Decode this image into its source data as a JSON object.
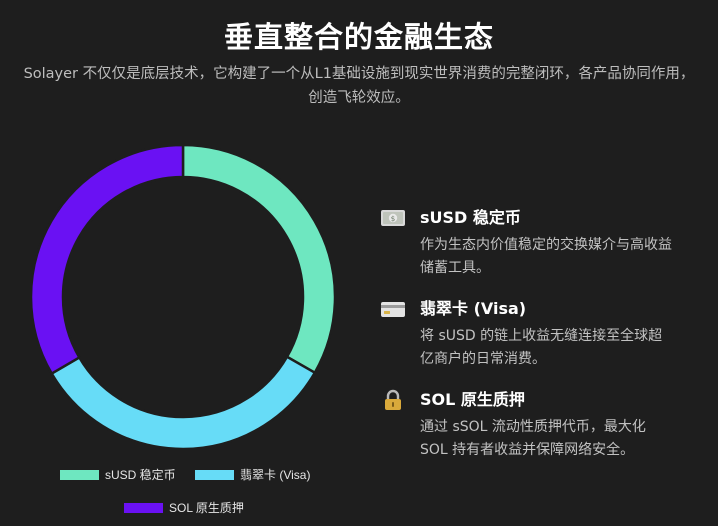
{
  "header": {
    "title": "垂直整合的金融生态",
    "subtitle": "Solayer 不仅仅是底层技术，它构建了一个从L1基础设施到现实世界消费的完整闭环，各产品协同作用，创造飞轮效应。"
  },
  "chart_data": {
    "type": "pie",
    "donut": true,
    "categories": [
      "sUSD 稳定币",
      "翡翠卡 (Visa)",
      "SOL 原生质押"
    ],
    "values": [
      33.3,
      33.3,
      33.4
    ],
    "colors": [
      "#6ee7c0",
      "#67dcf7",
      "#6a11f3"
    ],
    "legend_position": "bottom",
    "title": "",
    "xlabel": "",
    "ylabel": ""
  },
  "features": [
    {
      "icon": "money-icon",
      "title": "sUSD 稳定币",
      "desc_line1": "作为生态内价值稳定的交换媒介与高收益",
      "desc_line2": "储蓄工具。"
    },
    {
      "icon": "credit-card-icon",
      "title": "翡翠卡 (Visa)",
      "desc_line1": "将 sUSD 的链上收益无缝连接至全球超",
      "desc_line2": "亿商户的日常消费。"
    },
    {
      "icon": "lock-icon",
      "title": "SOL 原生质押",
      "desc_line1": "通过 sSOL 流动性质押代币，最大化",
      "desc_line2": "SOL 持有者收益并保障网络安全。"
    }
  ]
}
